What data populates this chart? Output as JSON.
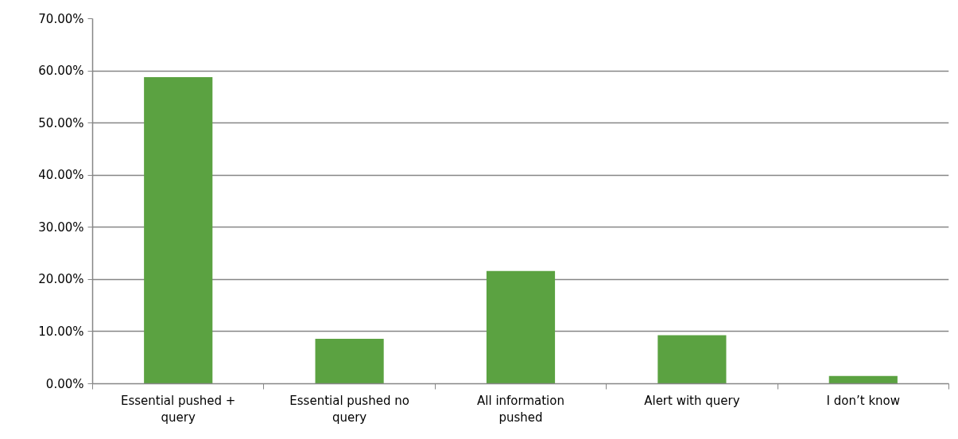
{
  "chart_data": {
    "type": "bar",
    "categories": [
      "Essential pushed + query",
      "Essential pushed no query",
      "All information pushed",
      "Alert with query",
      "I don’t know"
    ],
    "values": [
      58.8,
      8.6,
      21.6,
      9.3,
      1.5
    ],
    "color": "#5ba241",
    "ylim": [
      0,
      70
    ],
    "yticks": [
      {
        "value": 0,
        "label": "0.00%"
      },
      {
        "value": 10,
        "label": "10.00%"
      },
      {
        "value": 20,
        "label": "20.00%"
      },
      {
        "value": 30,
        "label": "30.00%"
      },
      {
        "value": 40,
        "label": "40.00%"
      },
      {
        "value": 50,
        "label": "50.00%"
      },
      {
        "value": 60,
        "label": "60.00%"
      },
      {
        "value": 70,
        "label": "70.00%"
      }
    ],
    "grid": "y"
  }
}
